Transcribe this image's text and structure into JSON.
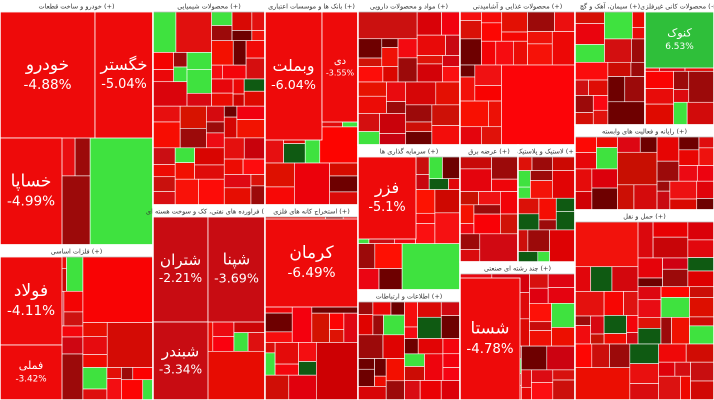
{
  "sectors": [
    {
      "title": "خودرو و ساخت قطعات (+)",
      "tiles": [
        {
          "symbol": "خودرو",
          "change": "-4.88%"
        },
        {
          "symbol": "خگستر",
          "change": "-5.04%"
        },
        {
          "symbol": "خساپا",
          "change": "-4.99%"
        }
      ]
    },
    {
      "title": "فلزات اساسی (+)",
      "tiles": [
        {
          "symbol": "فولاد",
          "change": "-4.11%"
        },
        {
          "symbol": "فملی",
          "change": "-3.42%"
        }
      ]
    },
    {
      "title": "محصولات شیمیایی (+)",
      "tiles": []
    },
    {
      "title": "فراورده های نفتی، کک و سوخت هسته ای (+)",
      "tiles": [
        {
          "symbol": "شتران",
          "change": "-2.21%"
        },
        {
          "symbol": "شپنا",
          "change": "-3.69%"
        },
        {
          "symbol": "شبندر",
          "change": "-3.34%"
        }
      ]
    },
    {
      "title": "بانک ها و موسسات اعتباری (+)",
      "tiles": [
        {
          "symbol": "وبملت",
          "change": "-6.04%"
        },
        {
          "symbol": "دی",
          "change": "-3.55%"
        }
      ]
    },
    {
      "title": "استخراج کانه های فلزی (+)",
      "tiles": [
        {
          "symbol": "کرمان",
          "change": "-6.49%"
        }
      ]
    },
    {
      "title": "مواد و محصولات دارویی (+)",
      "tiles": []
    },
    {
      "title": "سرمایه گذاری ها (+)",
      "tiles": [
        {
          "symbol": "فزر",
          "change": "-5.1%"
        }
      ]
    },
    {
      "title": "اطلاعات و ارتباطات (+)",
      "tiles": []
    },
    {
      "title": "محصولات غذایی و آشامیدنی (+)",
      "tiles": []
    },
    {
      "title": "عرضه برق (+)",
      "tiles": []
    },
    {
      "title": "چند رشته ای صنعتی (+)",
      "tiles": [
        {
          "symbol": "شستا",
          "change": "-4.78%"
        }
      ]
    },
    {
      "title": "لاستیک و پلاستیک (+)",
      "tiles": []
    },
    {
      "title": "سیمان، آهک و گچ (+)",
      "tiles": []
    },
    {
      "title": "محصولات کانی غیرفلزی (+)",
      "tiles": [
        {
          "symbol": "کنوک",
          "change": "6.53%"
        }
      ]
    },
    {
      "title": "رایانه و فعالیت های وابسته (+)",
      "tiles": []
    },
    {
      "title": "حمل و نقل (+)",
      "tiles": []
    }
  ]
}
